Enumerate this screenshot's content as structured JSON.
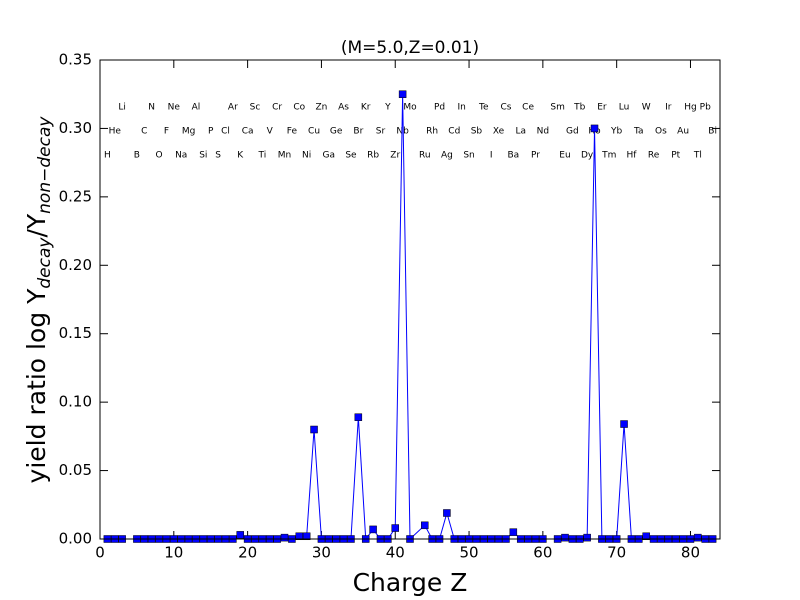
{
  "chart_data": {
    "type": "line",
    "title": "(M=5.0,Z=0.01)",
    "xlabel": "Charge Z",
    "ylabel": {
      "main": "yield ratio log Y",
      "sub1": "decay",
      "mid": "/Y",
      "sub2": "non−decay"
    },
    "x": [
      1,
      2,
      3,
      5,
      6,
      7,
      8,
      9,
      10,
      11,
      12,
      13,
      14,
      15,
      16,
      17,
      18,
      19,
      20,
      21,
      22,
      23,
      24,
      25,
      26,
      27,
      28,
      29,
      30,
      31,
      32,
      33,
      34,
      35,
      36,
      37,
      38,
      39,
      40,
      41,
      42,
      44,
      45,
      46,
      47,
      48,
      49,
      50,
      51,
      52,
      53,
      54,
      55,
      56,
      57,
      58,
      59,
      60,
      62,
      63,
      64,
      65,
      66,
      67,
      68,
      69,
      70,
      71,
      72,
      73,
      74,
      75,
      76,
      77,
      78,
      79,
      80,
      81,
      82,
      83
    ],
    "element_labels": [
      "H",
      "He",
      "Li",
      "B",
      "C",
      "N",
      "O",
      "F",
      "Ne",
      "Na",
      "Mg",
      "Al",
      "Si",
      "P",
      "S",
      "Cl",
      "Ar",
      "K",
      "Ca",
      "Sc",
      "Ti",
      "V",
      "Cr",
      "Mn",
      "Fe",
      "Co",
      "Ni",
      "Cu",
      "Zn",
      "Ga",
      "Ge",
      "As",
      "Se",
      "Br",
      "Kr",
      "Rb",
      "Sr",
      "Y",
      "Zr",
      "Nb",
      "Mo",
      "Ru",
      "Rh",
      "Pd",
      "Ag",
      "Cd",
      "In",
      "Sn",
      "Sb",
      "Te",
      "I",
      "Xe",
      "Cs",
      "Ba",
      "La",
      "Ce",
      "Pr",
      "Nd",
      "Sm",
      "Eu",
      "Gd",
      "Tb",
      "Dy",
      "Ho",
      "Er",
      "Tm",
      "Yb",
      "Lu",
      "Hf",
      "Ta",
      "W",
      "Re",
      "Os",
      "Ir",
      "Pt",
      "Au",
      "Hg",
      "Tl",
      "Pb",
      "Bi"
    ],
    "series": [
      {
        "color": "#0000ff",
        "values": [
          0,
          0,
          0,
          0,
          0,
          0,
          0,
          0,
          0,
          0,
          0,
          0,
          0,
          0,
          0,
          0,
          0,
          0.003,
          0,
          0,
          0,
          0,
          0,
          0.001,
          0,
          0.002,
          0.002,
          0.08,
          0,
          0,
          0,
          0,
          0,
          0.089,
          0,
          0.007,
          0,
          0,
          0.008,
          0.325,
          0,
          0.01,
          0,
          0,
          0.019,
          0,
          0,
          0,
          0,
          0,
          0,
          0,
          0,
          0.005,
          0,
          0,
          0,
          0,
          0,
          0.001,
          0,
          0,
          0.001,
          0.3,
          0,
          0,
          0,
          0.084,
          0,
          0,
          0.002,
          0,
          0,
          0,
          0,
          0,
          0,
          0.001,
          0,
          0
        ]
      }
    ],
    "xlim": [
      0,
      84
    ],
    "xticks": [
      0,
      10,
      20,
      30,
      40,
      50,
      60,
      70,
      80
    ],
    "ylim": [
      0,
      0.35
    ],
    "yticks": [
      {
        "value": 0,
        "label": "0.00"
      },
      {
        "value": 0.05,
        "label": "0.05"
      },
      {
        "value": 0.1,
        "label": "0.10"
      },
      {
        "value": 0.15,
        "label": "0.15"
      },
      {
        "value": 0.2,
        "label": "0.20"
      },
      {
        "value": 0.25,
        "label": "0.25"
      },
      {
        "value": 0.3,
        "label": "0.30"
      },
      {
        "value": 0.35,
        "label": "0.35"
      }
    ]
  }
}
